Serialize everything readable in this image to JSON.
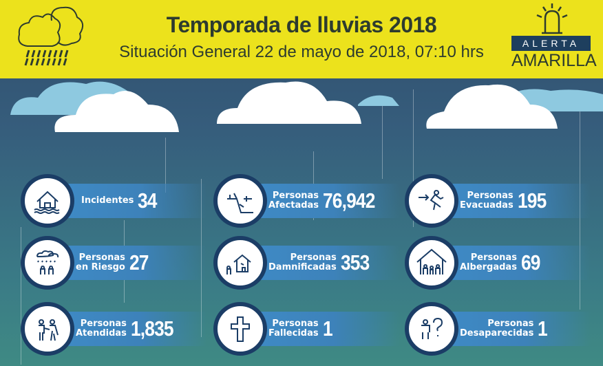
{
  "header": {
    "title": "Temporada de lluvias 2018",
    "subtitle": "Situación General 22 de mayo de 2018, 07:10 hrs",
    "alert_top": "ALERTA",
    "alert_bottom": "AMARILLA",
    "bg_color": "#ece21c",
    "alert_icon": "siren-icon",
    "logo_icon": "rain-cloud-icon"
  },
  "stats": [
    {
      "label1": "Incidentes",
      "label2": "",
      "value": "34",
      "icon": "flooded-house-icon"
    },
    {
      "label1": "Personas",
      "label2": "Afectadas",
      "value": "76,942",
      "icon": "landslide-icon"
    },
    {
      "label1": "Personas",
      "label2": "Evacuadas",
      "value": "195",
      "icon": "evacuation-icon"
    },
    {
      "label1": "Personas",
      "label2": "en Riesgo",
      "value": "27",
      "icon": "people-in-rain-icon"
    },
    {
      "label1": "Personas",
      "label2": "Damnificadas",
      "value": "353",
      "icon": "damaged-house-icon"
    },
    {
      "label1": "Personas",
      "label2": "Albergadas",
      "value": "69",
      "icon": "shelter-icon"
    },
    {
      "label1": "Personas",
      "label2": "Atendidas",
      "value": "1,835",
      "icon": "assisted-people-icon"
    },
    {
      "label1": "Personas",
      "label2": "Fallecidas",
      "value": "1",
      "icon": "cross-icon"
    },
    {
      "label1": "Personas",
      "label2": "Desaparecidas",
      "value": "1",
      "icon": "missing-person-icon"
    }
  ]
}
